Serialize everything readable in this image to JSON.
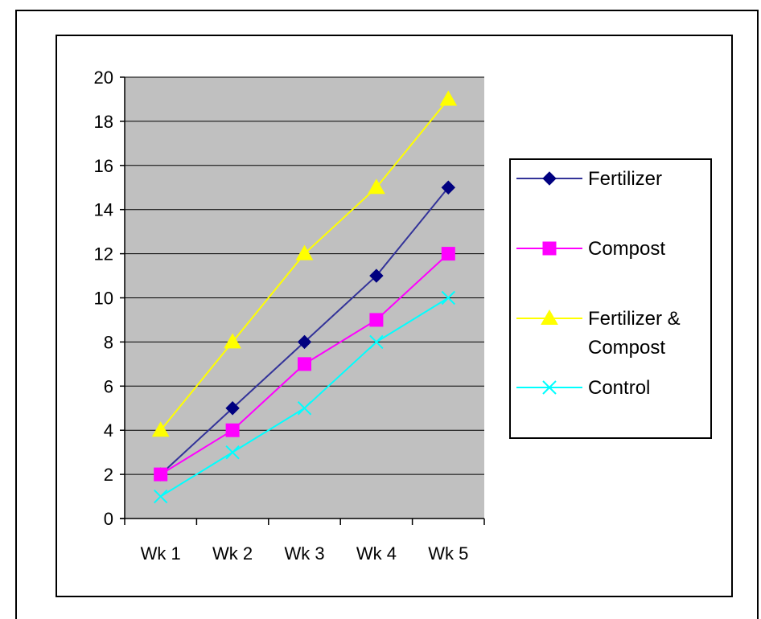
{
  "chart_data": {
    "type": "line",
    "categories": [
      "Wk 1",
      "Wk 2",
      "Wk 3",
      "Wk 4",
      "Wk 5"
    ],
    "ylim": [
      0,
      20
    ],
    "yticks": [
      "0",
      "2",
      "4",
      "6",
      "8",
      "10",
      "12",
      "14",
      "16",
      "18",
      "20"
    ],
    "grid": true,
    "plot_background": "#c0c0c0",
    "legend_position": "right",
    "series": [
      {
        "name": "Fertilizer",
        "legend_lines": [
          "Fertilizer"
        ],
        "values": [
          2,
          5,
          8,
          11,
          15
        ],
        "color": "#000080",
        "line_color": "#333399",
        "marker": "diamond"
      },
      {
        "name": "Compost",
        "legend_lines": [
          "Compost"
        ],
        "values": [
          2,
          4,
          7,
          9,
          12
        ],
        "color": "#ff00ff",
        "line_color": "#ff00ff",
        "marker": "square"
      },
      {
        "name": "Fertilizer & Compost",
        "legend_lines": [
          "Fertilizer &",
          "Compost"
        ],
        "values": [
          4,
          8,
          12,
          15,
          19
        ],
        "color": "#ffff00",
        "line_color": "#ffff00",
        "marker": "triangle"
      },
      {
        "name": "Control",
        "legend_lines": [
          "Control"
        ],
        "values": [
          1,
          3,
          5,
          8,
          10
        ],
        "color": "#00ffff",
        "line_color": "#00ffff",
        "marker": "x"
      }
    ]
  }
}
